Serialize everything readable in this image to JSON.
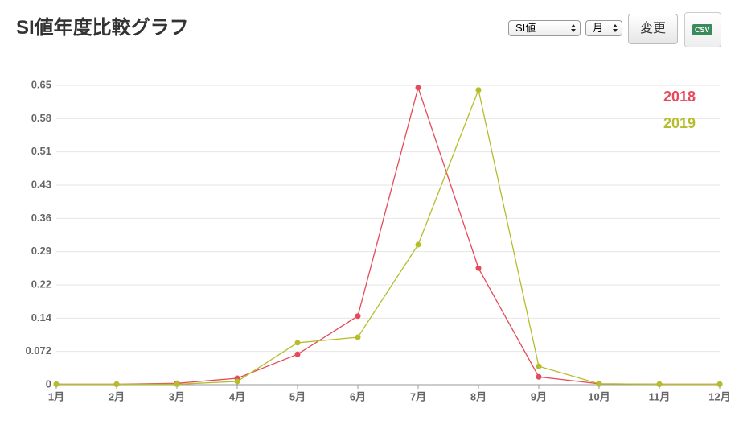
{
  "header": {
    "title": "SI値年度比較グラフ",
    "select_metric": "SI値",
    "select_period": "月",
    "button": "変更",
    "csv": "CSV"
  },
  "chart_data": {
    "type": "line",
    "categories": [
      "1月",
      "2月",
      "3月",
      "4月",
      "5月",
      "6月",
      "7月",
      "8月",
      "9月",
      "10月",
      "11月",
      "12月"
    ],
    "series": [
      {
        "name": "2018",
        "color": "#e5495a",
        "values": [
          0.001,
          0.001,
          0.003,
          0.014,
          0.066,
          0.149,
          0.645,
          0.253,
          0.017,
          0.002,
          0.001,
          0.001
        ]
      },
      {
        "name": "2019",
        "color": "#b5bd2a",
        "values": [
          0.001,
          0.001,
          0.001,
          0.007,
          0.091,
          0.103,
          0.304,
          0.64,
          0.04,
          0.002,
          0.001,
          0.001
        ]
      }
    ],
    "ylim": [
      0,
      0.65
    ],
    "yticks": [
      0,
      {
        "value": 0.0722,
        "label": "0.072"
      },
      {
        "value": 0.1444,
        "label": "0.14"
      },
      {
        "value": 0.2167,
        "label": "0.22"
      },
      {
        "value": 0.2889,
        "label": "0.29"
      },
      {
        "value": 0.3611,
        "label": "0.36"
      },
      {
        "value": 0.4333,
        "label": "0.43"
      },
      {
        "value": 0.5056,
        "label": "0.51"
      },
      {
        "value": 0.5778,
        "label": "0.58"
      },
      0.65
    ],
    "grid": true,
    "legend": "top-right"
  }
}
